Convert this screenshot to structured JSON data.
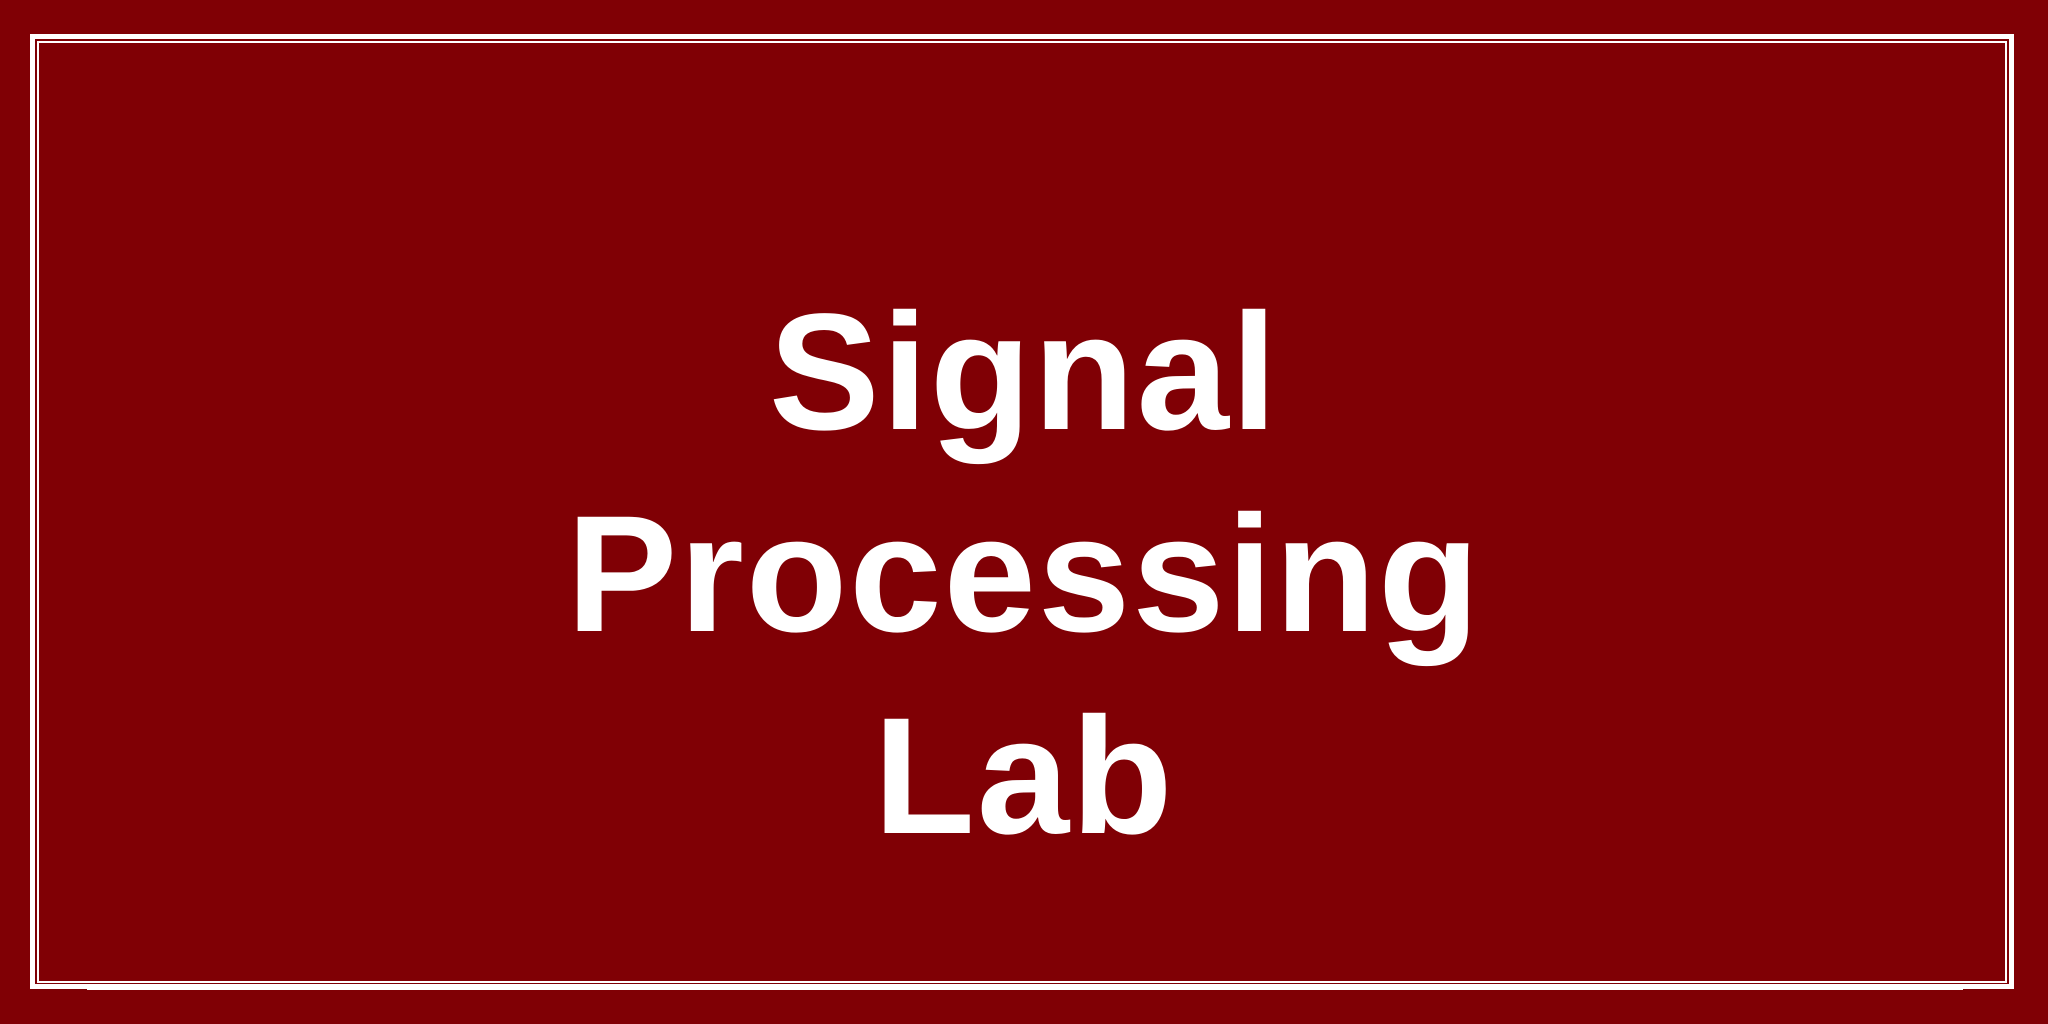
{
  "banner": {
    "title_lines": [
      "Signal",
      "Processing",
      "Lab"
    ],
    "background_color": "#800005",
    "text_color": "#ffffff",
    "frame_color": "#ffffff"
  }
}
